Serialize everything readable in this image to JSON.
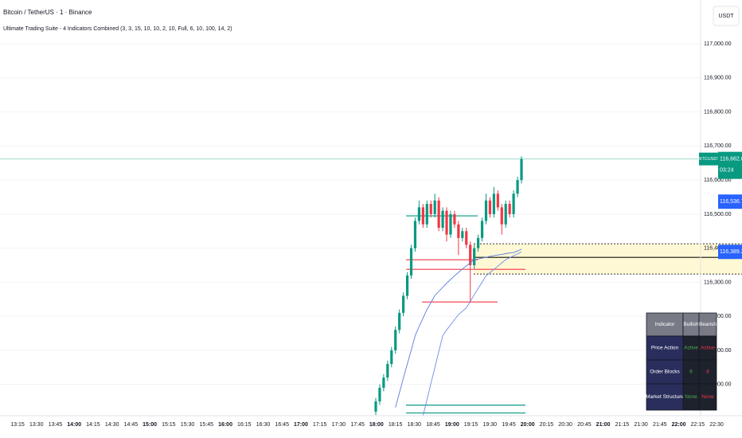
{
  "header": {
    "symbol": "Bitcoin / TetherUS · 1 · Binance",
    "indicator": "Ultimate Trading Suite - 4 Indicators Combined (3, 3, 15, 10, 10, 2, 10, Full, 6, 10, 100, 14, 2)",
    "currency": "USDT"
  },
  "chart_data": {
    "type": "candlestick",
    "ylim": [
      115908,
      117129
    ],
    "yticks": [
      {
        "value": 116000,
        "label": "116,000.00"
      },
      {
        "value": 116100,
        "label": "116,100.00"
      },
      {
        "value": 116200,
        "label": "116,200.00"
      },
      {
        "value": 116300,
        "label": "116,300.00"
      },
      {
        "value": 116400,
        "label": "116,400.00"
      },
      {
        "value": 116500,
        "label": "116,500.00"
      },
      {
        "value": 116600,
        "label": "116,600.00"
      },
      {
        "value": 116700,
        "label": "116,700.00"
      },
      {
        "value": 116800,
        "label": "116,800.00"
      },
      {
        "value": 116900,
        "label": "116,900.00"
      },
      {
        "value": 117000,
        "label": "117,000.00"
      }
    ],
    "grid": true,
    "time_labels": [
      "13:15",
      "13:30",
      "13:45",
      "14:00",
      "14:15",
      "14:30",
      "14:45",
      "15:00",
      "15:15",
      "15:30",
      "15:45",
      "16:00",
      "16:15",
      "16:30",
      "16:45",
      "17:00",
      "17:15",
      "17:30",
      "17:45",
      "18:00",
      "18:15",
      "18:30",
      "18:45",
      "19:00",
      "19:15",
      "19:30",
      "19:45",
      "20:00",
      "20:15",
      "20:30",
      "20:45",
      "21:00",
      "21:15",
      "21:30",
      "21:45",
      "22:00",
      "22:15",
      "22:30"
    ],
    "up_color": "#089981",
    "down_color": "#f23645",
    "open": [
      115920,
      115950,
      115990,
      116020,
      116060,
      116100,
      116160,
      116210,
      116260,
      116320,
      116400,
      116480,
      116520,
      116470,
      116530,
      116500,
      116540,
      116460,
      116510,
      116440,
      116500,
      116470,
      116430,
      116450,
      116410,
      116350,
      116400,
      116430,
      116480,
      116540,
      116500,
      116560,
      116520,
      116470,
      116530,
      116500,
      116560,
      116600
    ],
    "high": [
      115960,
      116000,
      116030,
      116070,
      116110,
      116170,
      116220,
      116270,
      116330,
      116410,
      116490,
      116540,
      116530,
      116540,
      116540,
      116560,
      116550,
      116520,
      116520,
      116510,
      116510,
      116480,
      116460,
      116460,
      116420,
      116410,
      116440,
      116490,
      116560,
      116550,
      116580,
      116570,
      116530,
      116540,
      116540,
      116570,
      116610,
      116670
    ],
    "low": [
      115910,
      115940,
      115980,
      116010,
      116050,
      116090,
      116150,
      116200,
      116250,
      116310,
      116390,
      116470,
      116460,
      116460,
      116490,
      116490,
      116450,
      116450,
      116420,
      116430,
      116460,
      116380,
      116420,
      116400,
      116240,
      116340,
      116390,
      116420,
      116470,
      116490,
      116490,
      116510,
      116440,
      116460,
      116490,
      116490,
      116550,
      116590
    ],
    "close": [
      115950,
      115990,
      116020,
      116060,
      116100,
      116160,
      116210,
      116260,
      116320,
      116400,
      116480,
      116520,
      116470,
      116530,
      116500,
      116540,
      116460,
      116510,
      116440,
      116500,
      116470,
      116430,
      116450,
      116410,
      116350,
      116400,
      116430,
      116480,
      116540,
      116500,
      116560,
      116520,
      116470,
      116530,
      116500,
      116560,
      116600,
      116662
    ],
    "series": [
      {
        "color": "#5b7be0",
        "values": [
          null,
          null,
          null,
          null,
          null,
          115932,
          115975,
          116018,
          116060,
          116100,
          116143,
          116170,
          116195,
          116220,
          116240,
          116261,
          116273,
          116285,
          116297,
          116308,
          116319,
          116329,
          116339,
          116348,
          116357,
          116366,
          116368,
          116371,
          116373,
          116376,
          116378,
          116380,
          116382,
          116384,
          116386,
          116387,
          116392,
          116397
        ]
      },
      {
        "color": "#6d8be8",
        "values": [
          null,
          null,
          null,
          null,
          null,
          null,
          null,
          null,
          null,
          null,
          null,
          null,
          115908,
          115955,
          116002,
          116049,
          116096,
          116143,
          116160,
          116175,
          116190,
          116205,
          116215,
          116225,
          116244,
          116263,
          116282,
          116300,
          116319,
          116328,
          116338,
          116347,
          116357,
          116366,
          116372,
          116378,
          116383,
          116389
        ]
      }
    ],
    "levels": [
      {
        "value": 116495,
        "color": "#089981"
      },
      {
        "value": 116366,
        "color": "#f23645"
      },
      {
        "value": 116338,
        "color": "#f23645"
      },
      {
        "value": 116242,
        "color": "#f23645"
      },
      {
        "value": 115939,
        "color": "#089981"
      },
      {
        "value": 115916,
        "color": "#089981"
      }
    ],
    "zone": {
      "low": 116324,
      "high": 116413,
      "mid": 116373,
      "color": "#fff8d4"
    },
    "symbol_tag": "BITCUSDT",
    "countdown": "03:24",
    "price_labels": [
      {
        "value": 116662,
        "label": "116,662.00",
        "color": "#089981"
      },
      {
        "value": 116536.71,
        "label": "116,536.71",
        "color": "#2962ff"
      },
      {
        "value": 116389.23,
        "label": "116,389.23",
        "color": "#2962ff"
      }
    ]
  },
  "table": {
    "header": [
      "Indicator",
      "Bullish",
      "Bearish"
    ],
    "rows": [
      [
        "Price Action",
        "Active",
        "Active"
      ],
      [
        "Order Blocks",
        "6",
        "6"
      ],
      [
        "Market Structure",
        "None",
        "None"
      ]
    ]
  }
}
